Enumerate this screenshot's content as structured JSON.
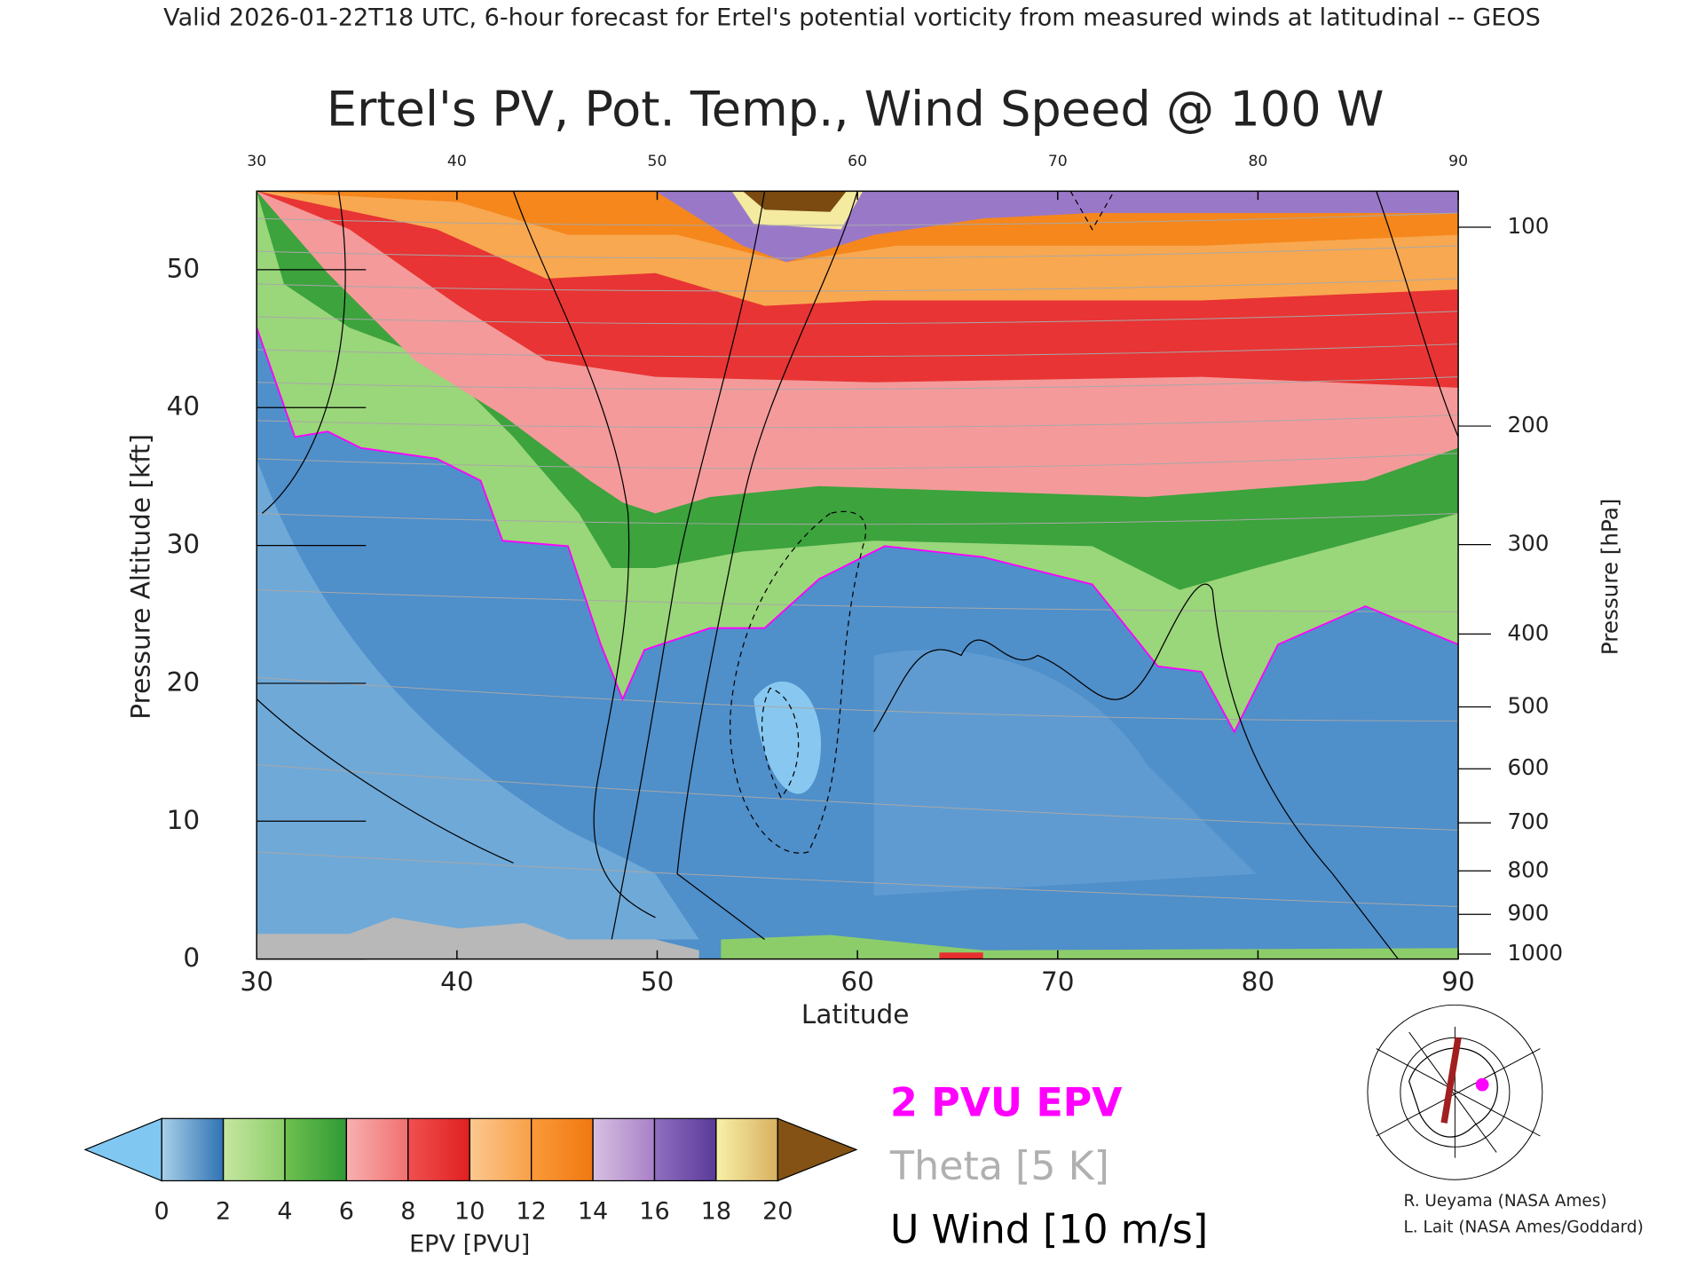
{
  "chart_data": {
    "type": "contour",
    "header": "Valid 2026-01-22T18 UTC, 6-hour forecast for Ertel's potential vorticity from measured winds at latitudinal -- GEOS",
    "title": "Ertel's PV, Pot. Temp., Wind Speed @ 100 W",
    "xlabel": "Latitude",
    "ylabel": "Pressure Altitude [kft]",
    "y2label": "Pressure [hPa]",
    "xlim": [
      30,
      90
    ],
    "xticks": [
      30,
      40,
      50,
      60,
      70,
      80,
      90
    ],
    "ylim": [
      0,
      55.7
    ],
    "yticks": [
      0,
      10,
      20,
      30,
      40,
      50
    ],
    "y2lim": [
      1013.25,
      88.4
    ],
    "y2ticks": [
      100,
      200,
      300,
      400,
      500,
      600,
      700,
      800,
      900,
      1000
    ],
    "colorbar": {
      "label": "EPV [PVU]",
      "ticks": [
        0,
        2,
        4,
        6,
        8,
        10,
        12,
        14,
        16,
        18,
        20
      ],
      "under": "#80c8f2",
      "over": "#845214",
      "colors": [
        [
          "#a9cfe9",
          "#2f73b3"
        ],
        [
          "#c6e6a0",
          "#8ccd6a"
        ],
        [
          "#6fc04f",
          "#2f9a35"
        ],
        [
          "#f8b0b0",
          "#f07070"
        ],
        [
          "#f05050",
          "#e02020"
        ],
        [
          "#fcc890",
          "#f8a048"
        ],
        [
          "#fb9a3a",
          "#f07810"
        ],
        [
          "#d8c0e0",
          "#a880c8"
        ],
        [
          "#9070c0",
          "#5a3a98"
        ],
        [
          "#f8f0a8",
          "#d8b060"
        ]
      ]
    },
    "legend": [
      {
        "name": "2 PVU EPV",
        "color": "#ff00ff"
      },
      {
        "name": "Theta [5 K]",
        "color": "#b0b0b0"
      },
      {
        "name": "U Wind [10 m/s]",
        "color": "#000000"
      }
    ],
    "credits": [
      "R. Ueyama (NASA Ames)",
      "L. Lait (NASA Ames/Goddard)"
    ]
  }
}
